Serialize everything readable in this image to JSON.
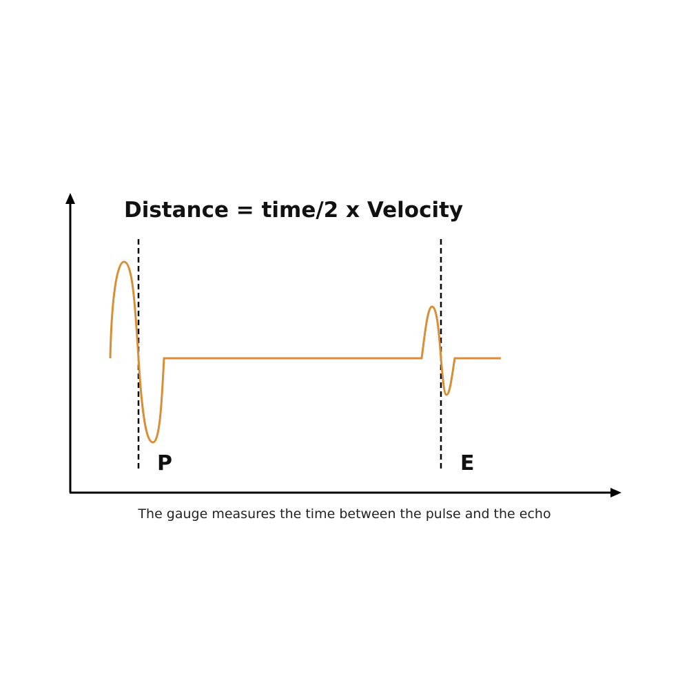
{
  "title": "Distance = time/2 x Velocity",
  "markers": [
    {
      "label": "P"
    },
    {
      "label": "E"
    }
  ],
  "caption": "The gauge measures the time between the pulse and the echo"
}
